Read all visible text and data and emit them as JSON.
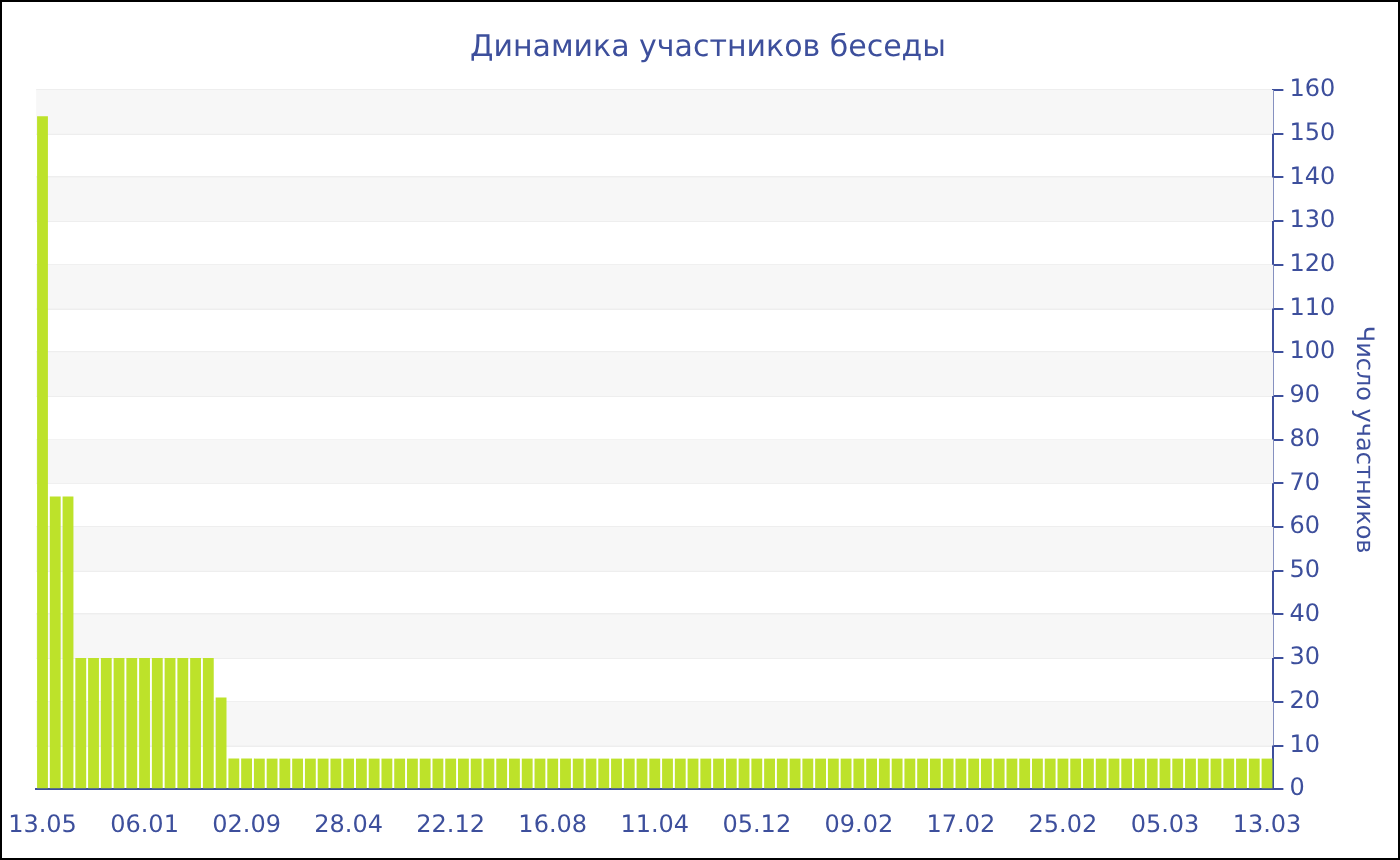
{
  "chart_data": {
    "type": "bar",
    "title": "Динамика участников беседы",
    "ylabel": "Число участников",
    "categories": [
      "13.05",
      null,
      null,
      null,
      null,
      null,
      null,
      null,
      "06.01",
      null,
      null,
      null,
      null,
      null,
      null,
      null,
      "02.09",
      null,
      null,
      null,
      null,
      null,
      null,
      null,
      "28.04",
      null,
      null,
      null,
      null,
      null,
      null,
      null,
      "22.12",
      null,
      null,
      null,
      null,
      null,
      null,
      null,
      "16.08",
      null,
      null,
      null,
      null,
      null,
      null,
      null,
      "11.04",
      null,
      null,
      null,
      null,
      null,
      null,
      null,
      "05.12",
      null,
      null,
      null,
      null,
      null,
      null,
      null,
      "09.02",
      null,
      null,
      null,
      null,
      null,
      null,
      null,
      "17.02",
      null,
      null,
      null,
      null,
      null,
      null,
      null,
      "25.02",
      null,
      null,
      null,
      null,
      null,
      null,
      null,
      "05.03",
      null,
      null,
      null,
      null,
      null,
      null,
      null,
      "13.03"
    ],
    "values": [
      154,
      67,
      67,
      30,
      30,
      30,
      30,
      30,
      30,
      30,
      30,
      30,
      30,
      30,
      21,
      7,
      7,
      7,
      7,
      7,
      7,
      7,
      7,
      7,
      7,
      7,
      7,
      7,
      7,
      7,
      7,
      7,
      7,
      7,
      7,
      7,
      7,
      7,
      7,
      7,
      7,
      7,
      7,
      7,
      7,
      7,
      7,
      7,
      7,
      7,
      7,
      7,
      7,
      7,
      7,
      7,
      7,
      7,
      7,
      7,
      7,
      7,
      7,
      7,
      7,
      7,
      7,
      7,
      7,
      7,
      7,
      7,
      7,
      7,
      7,
      7,
      7,
      7,
      7,
      7,
      7,
      7,
      7,
      7,
      7,
      7,
      7,
      7,
      7,
      7,
      7,
      7,
      7,
      7,
      7,
      7,
      7
    ],
    "color": "#bde22a",
    "ylim": [
      0,
      160
    ],
    "yticks": [
      0,
      10,
      20,
      30,
      40,
      50,
      60,
      70,
      80,
      90,
      100,
      110,
      120,
      130,
      140,
      150,
      160
    ],
    "grid": true,
    "legend": false
  }
}
